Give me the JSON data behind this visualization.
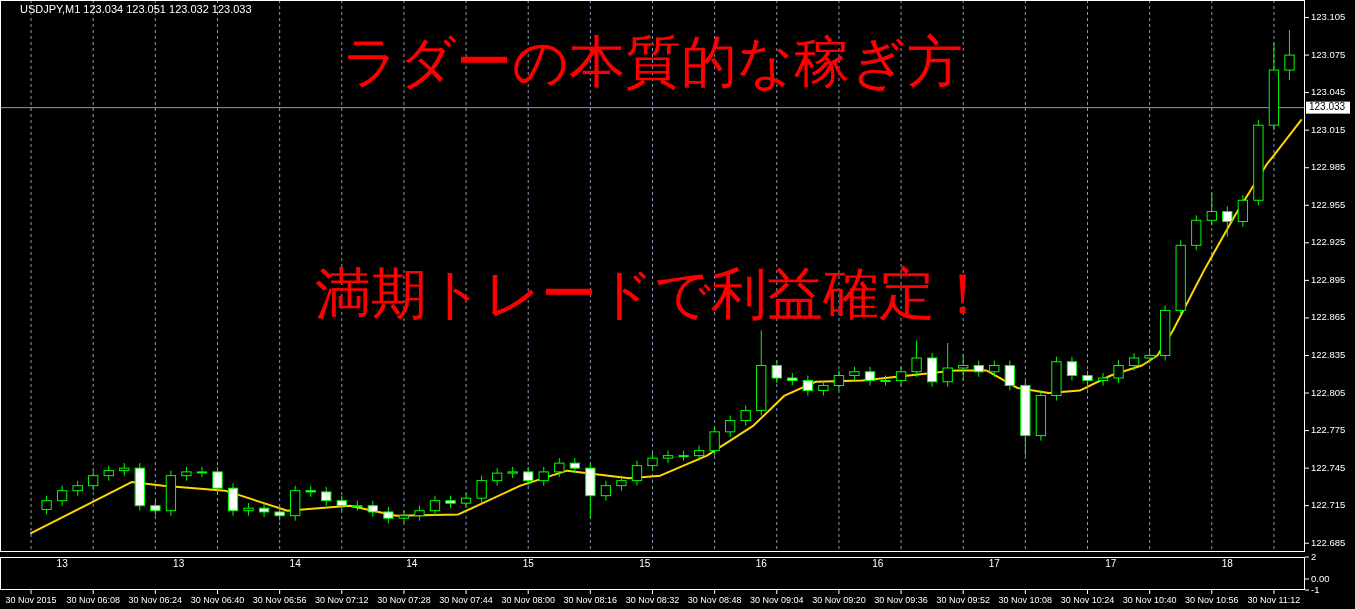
{
  "chart_data": [
    {
      "type": "candlestick",
      "title": "USDJPY,M1  123.034 123.051 123.032 123.033",
      "color": "#00ff00",
      "x": [
        "2015-11-30T05:56",
        "2015-11-30T06:00",
        "2015-11-30T06:04",
        "2015-11-30T06:08",
        "2015-11-30T06:12",
        "2015-11-30T06:16",
        "2015-11-30T06:20",
        "2015-11-30T06:24",
        "2015-11-30T06:28",
        "2015-11-30T06:32",
        "2015-11-30T06:36",
        "2015-11-30T06:40",
        "2015-11-30T06:44",
        "2015-11-30T06:48",
        "2015-11-30T06:52",
        "2015-11-30T06:56",
        "2015-11-30T07:00",
        "2015-11-30T07:04",
        "2015-11-30T07:08",
        "2015-11-30T07:12",
        "2015-11-30T07:16",
        "2015-11-30T07:20",
        "2015-11-30T07:24",
        "2015-11-30T07:28",
        "2015-11-30T07:32",
        "2015-11-30T07:36",
        "2015-11-30T07:40",
        "2015-11-30T07:44",
        "2015-11-30T07:48",
        "2015-11-30T07:52",
        "2015-11-30T07:56",
        "2015-11-30T08:00",
        "2015-11-30T08:04",
        "2015-11-30T08:08",
        "2015-11-30T08:12",
        "2015-11-30T08:16",
        "2015-11-30T08:20",
        "2015-11-30T08:24",
        "2015-11-30T08:28",
        "2015-11-30T08:32",
        "2015-11-30T08:36",
        "2015-11-30T08:40",
        "2015-11-30T08:44",
        "2015-11-30T08:48",
        "2015-11-30T08:52",
        "2015-11-30T08:56",
        "2015-11-30T09:00",
        "2015-11-30T09:04",
        "2015-11-30T09:08",
        "2015-11-30T09:12",
        "2015-11-30T09:16",
        "2015-11-30T09:20",
        "2015-11-30T09:24",
        "2015-11-30T09:28",
        "2015-11-30T09:32",
        "2015-11-30T09:36",
        "2015-11-30T09:40",
        "2015-11-30T09:44",
        "2015-11-30T09:48",
        "2015-11-30T09:52",
        "2015-11-30T09:56",
        "2015-11-30T10:00",
        "2015-11-30T10:04",
        "2015-11-30T10:08",
        "2015-11-30T10:12",
        "2015-11-30T10:16",
        "2015-11-30T10:20",
        "2015-11-30T10:24",
        "2015-11-30T10:28",
        "2015-11-30T10:32",
        "2015-11-30T10:36",
        "2015-11-30T10:40",
        "2015-11-30T10:44",
        "2015-11-30T10:48",
        "2015-11-30T10:52",
        "2015-11-30T10:56",
        "2015-11-30T11:00",
        "2015-11-30T11:04",
        "2015-11-30T11:08",
        "2015-11-30T11:12",
        "2015-11-30T11:16"
      ],
      "ohlc": [
        [
          122.712,
          122.723,
          122.708,
          122.719
        ],
        [
          122.719,
          122.731,
          122.715,
          122.727
        ],
        [
          122.727,
          122.735,
          122.723,
          122.731
        ],
        [
          122.731,
          122.743,
          122.727,
          122.739
        ],
        [
          122.739,
          122.747,
          122.735,
          122.743
        ],
        [
          122.743,
          122.749,
          122.739,
          122.745
        ],
        [
          122.745,
          122.749,
          122.711,
          122.715
        ],
        [
          122.715,
          122.719,
          122.707,
          122.711
        ],
        [
          122.711,
          122.743,
          122.707,
          122.739
        ],
        [
          122.739,
          122.746,
          122.735,
          122.742
        ],
        [
          122.742,
          122.746,
          122.738,
          122.742
        ],
        [
          122.742,
          122.746,
          122.725,
          122.729
        ],
        [
          122.729,
          122.733,
          122.707,
          122.711
        ],
        [
          122.711,
          122.717,
          122.707,
          122.713
        ],
        [
          122.713,
          122.717,
          122.706,
          122.71
        ],
        [
          122.71,
          122.714,
          122.703,
          122.707
        ],
        [
          122.707,
          122.731,
          122.703,
          122.727
        ],
        [
          122.727,
          122.731,
          122.722,
          122.726
        ],
        [
          122.726,
          122.73,
          122.715,
          122.719
        ],
        [
          122.719,
          122.723,
          122.711,
          122.715
        ],
        [
          122.715,
          122.719,
          122.711,
          122.715
        ],
        [
          122.715,
          122.719,
          122.706,
          122.71
        ],
        [
          122.71,
          122.714,
          122.701,
          122.705
        ],
        [
          122.705,
          122.711,
          122.701,
          122.707
        ],
        [
          122.707,
          122.715,
          122.703,
          122.711
        ],
        [
          122.711,
          122.723,
          122.707,
          122.719
        ],
        [
          122.719,
          122.723,
          122.713,
          122.717
        ],
        [
          122.717,
          122.725,
          122.713,
          122.721
        ],
        [
          122.721,
          122.739,
          122.717,
          122.735
        ],
        [
          122.735,
          122.745,
          122.731,
          122.741
        ],
        [
          122.741,
          122.746,
          122.737,
          122.742
        ],
        [
          122.742,
          122.746,
          122.731,
          122.735
        ],
        [
          122.735,
          122.746,
          122.731,
          122.742
        ],
        [
          122.742,
          122.753,
          122.738,
          122.749
        ],
        [
          122.749,
          122.753,
          122.741,
          122.745
        ],
        [
          122.745,
          122.749,
          122.705,
          122.723
        ],
        [
          122.723,
          122.735,
          122.719,
          122.731
        ],
        [
          122.731,
          122.739,
          122.727,
          122.735
        ],
        [
          122.735,
          122.751,
          122.731,
          122.747
        ],
        [
          122.747,
          122.757,
          122.743,
          122.753
        ],
        [
          122.753,
          122.759,
          122.749,
          122.755
        ],
        [
          122.755,
          122.759,
          122.751,
          122.755
        ],
        [
          122.755,
          122.763,
          122.751,
          122.759
        ],
        [
          122.759,
          122.778,
          122.755,
          122.774
        ],
        [
          122.774,
          122.787,
          122.77,
          122.783
        ],
        [
          122.783,
          122.795,
          122.779,
          122.791
        ],
        [
          122.791,
          122.855,
          122.787,
          122.827
        ],
        [
          122.827,
          122.831,
          122.813,
          122.817
        ],
        [
          122.817,
          122.821,
          122.811,
          122.815
        ],
        [
          122.815,
          122.819,
          122.803,
          122.807
        ],
        [
          122.807,
          122.815,
          122.803,
          122.811
        ],
        [
          122.811,
          122.823,
          122.807,
          122.819
        ],
        [
          122.819,
          122.826,
          122.815,
          122.822
        ],
        [
          122.822,
          122.826,
          122.811,
          122.815
        ],
        [
          122.815,
          122.819,
          122.811,
          122.815
        ],
        [
          122.815,
          122.826,
          122.811,
          122.822
        ],
        [
          122.822,
          122.847,
          122.818,
          122.833
        ],
        [
          122.833,
          122.837,
          122.81,
          122.814
        ],
        [
          122.814,
          122.845,
          122.81,
          122.825
        ],
        [
          122.825,
          122.836,
          122.815,
          122.827
        ],
        [
          122.827,
          122.831,
          122.818,
          122.822
        ],
        [
          122.822,
          122.831,
          122.818,
          122.827
        ],
        [
          122.827,
          122.831,
          122.807,
          122.811
        ],
        [
          122.811,
          122.815,
          122.755,
          122.771
        ],
        [
          122.771,
          122.807,
          122.767,
          122.803
        ],
        [
          122.803,
          122.834,
          122.799,
          122.83
        ],
        [
          122.83,
          122.834,
          122.815,
          122.819
        ],
        [
          122.819,
          122.823,
          122.808,
          122.815
        ],
        [
          122.815,
          122.821,
          122.811,
          122.817
        ],
        [
          122.817,
          122.831,
          122.813,
          122.827
        ],
        [
          122.827,
          122.837,
          122.823,
          122.833
        ],
        [
          122.833,
          122.839,
          122.829,
          122.835
        ],
        [
          122.835,
          122.875,
          122.831,
          122.871
        ],
        [
          122.871,
          122.927,
          122.867,
          122.923
        ],
        [
          122.923,
          122.947,
          122.919,
          122.943
        ],
        [
          122.943,
          122.965,
          122.939,
          122.95
        ],
        [
          122.95,
          122.954,
          122.93,
          122.942
        ],
        [
          122.942,
          122.963,
          122.938,
          122.959
        ],
        [
          122.959,
          123.023,
          122.955,
          123.019
        ],
        [
          123.019,
          123.085,
          123.015,
          123.063
        ],
        [
          123.063,
          123.095,
          123.055,
          123.075
        ]
      ],
      "series": [
        {
          "type": "line",
          "color": "#ffd700",
          "x": [
            "2015-11-30T05:52",
            "2015-11-30T06:18",
            "2015-11-30T06:26",
            "2015-11-30T06:42",
            "2015-11-30T06:58",
            "2015-11-30T07:14",
            "2015-11-30T07:26",
            "2015-11-30T07:42",
            "2015-11-30T07:58",
            "2015-11-30T08:10",
            "2015-11-30T08:26",
            "2015-11-30T08:34",
            "2015-11-30T08:46",
            "2015-11-30T08:58",
            "2015-11-30T09:06",
            "2015-11-30T09:14",
            "2015-11-30T09:26",
            "2015-11-30T09:38",
            "2015-11-30T09:50",
            "2015-11-30T09:58",
            "2015-11-30T10:06",
            "2015-11-30T10:14",
            "2015-11-30T10:22",
            "2015-11-30T10:30",
            "2015-11-30T10:38",
            "2015-11-30T10:42",
            "2015-11-30T10:46",
            "2015-11-30T10:54",
            "2015-11-30T11:02",
            "2015-11-30T11:10",
            "2015-11-30T11:19"
          ],
          "values": [
            122.693,
            122.734,
            122.731,
            122.727,
            122.711,
            122.715,
            122.707,
            122.708,
            122.731,
            122.743,
            122.737,
            122.739,
            122.755,
            122.779,
            122.803,
            122.814,
            122.815,
            122.819,
            122.823,
            122.823,
            122.809,
            122.805,
            122.807,
            122.819,
            122.827,
            122.835,
            122.855,
            122.903,
            122.947,
            122.987,
            123.023
          ]
        }
      ],
      "xlim": [
        "2015-11-30T05:44",
        "2015-11-30T11:20"
      ],
      "xticks": [
        {
          "value": "2015-11-30T05:52",
          "label": "30 Nov 2015"
        },
        {
          "value": "2015-11-30T06:08",
          "label": "30 Nov 06:08"
        },
        {
          "value": "2015-11-30T06:24",
          "label": "30 Nov 06:24"
        },
        {
          "value": "2015-11-30T06:40",
          "label": "30 Nov 06:40"
        },
        {
          "value": "2015-11-30T06:56",
          "label": "30 Nov 06:56"
        },
        {
          "value": "2015-11-30T07:12",
          "label": "30 Nov 07:12"
        },
        {
          "value": "2015-11-30T07:28",
          "label": "30 Nov 07:28"
        },
        {
          "value": "2015-11-30T07:44",
          "label": "30 Nov 07:44"
        },
        {
          "value": "2015-11-30T08:00",
          "label": "30 Nov 08:00"
        },
        {
          "value": "2015-11-30T08:16",
          "label": "30 Nov 08:16"
        },
        {
          "value": "2015-11-30T08:32",
          "label": "30 Nov 08:32"
        },
        {
          "value": "2015-11-30T08:48",
          "label": "30 Nov 08:48"
        },
        {
          "value": "2015-11-30T09:04",
          "label": "30 Nov 09:04"
        },
        {
          "value": "2015-11-30T09:20",
          "label": "30 Nov 09:20"
        },
        {
          "value": "2015-11-30T09:36",
          "label": "30 Nov 09:36"
        },
        {
          "value": "2015-11-30T09:52",
          "label": "30 Nov 09:52"
        },
        {
          "value": "2015-11-30T10:08",
          "label": "30 Nov 10:08"
        },
        {
          "value": "2015-11-30T10:24",
          "label": "30 Nov 10:24"
        },
        {
          "value": "2015-11-30T10:40",
          "label": "30 Nov 10:40"
        },
        {
          "value": "2015-11-30T10:56",
          "label": "30 Nov 10:56"
        },
        {
          "value": "2015-11-30T11:12",
          "label": "30 Nov 11:12"
        }
      ],
      "ylim": [
        122.678,
        123.119
      ],
      "yticks": [
        122.685,
        122.715,
        122.745,
        122.775,
        122.805,
        122.835,
        122.865,
        122.895,
        122.925,
        122.955,
        122.985,
        123.015,
        123.045,
        123.075,
        123.105
      ],
      "grid": "x",
      "ref_lines": [
        {
          "axis": "y",
          "value": 123.033,
          "label": "123.033",
          "color": "#8a9bb0"
        }
      ],
      "annotations": [
        "ラダーの本質的な稼ぎ方",
        "満期トレードで利益確定！"
      ]
    },
    {
      "type": "line",
      "xlim": [
        "2015-11-30T05:44",
        "2015-11-30T11:20"
      ],
      "xticks": [
        {
          "value": "2015-11-30T06:00",
          "label": "13"
        },
        {
          "value": "2015-11-30T06:30",
          "label": "13"
        },
        {
          "value": "2015-11-30T07:00",
          "label": "14"
        },
        {
          "value": "2015-11-30T07:30",
          "label": "14"
        },
        {
          "value": "2015-11-30T08:00",
          "label": "15"
        },
        {
          "value": "2015-11-30T08:30",
          "label": "15"
        },
        {
          "value": "2015-11-30T09:00",
          "label": "16"
        },
        {
          "value": "2015-11-30T09:30",
          "label": "16"
        },
        {
          "value": "2015-11-30T10:00",
          "label": "17"
        },
        {
          "value": "2015-11-30T10:30",
          "label": "17"
        },
        {
          "value": "2015-11-30T11:00",
          "label": "18"
        }
      ],
      "ylim": [
        -1,
        2
      ],
      "yticks": [
        2,
        {
          "value": 0,
          "label": "0.00"
        },
        -1
      ]
    }
  ]
}
